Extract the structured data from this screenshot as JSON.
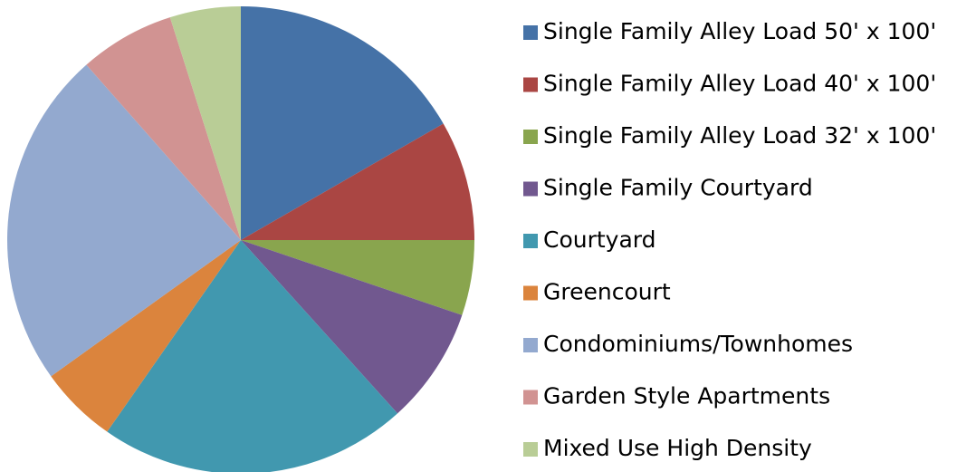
{
  "chart_data": {
    "type": "pie",
    "categories": [
      "Single Family Alley Load 50' x 100'",
      "Single Family Alley Load 40' x 100'",
      "Single Family Alley Load 32' x 100'",
      "Single Family Courtyard",
      "Courtyard",
      "Greencourt",
      "Condominiums/Townhomes",
      "Garden Style Apartments",
      "Mixed Use High Density"
    ],
    "values": [
      16.7,
      8.3,
      5.2,
      8.1,
      21.4,
      5.4,
      23.4,
      6.6,
      4.9
    ],
    "colors": [
      "#4572a7",
      "#aa4643",
      "#89a54e",
      "#71588f",
      "#4198af",
      "#db843d",
      "#93a9cf",
      "#d19392",
      "#b9cd96"
    ],
    "legend": "right"
  }
}
